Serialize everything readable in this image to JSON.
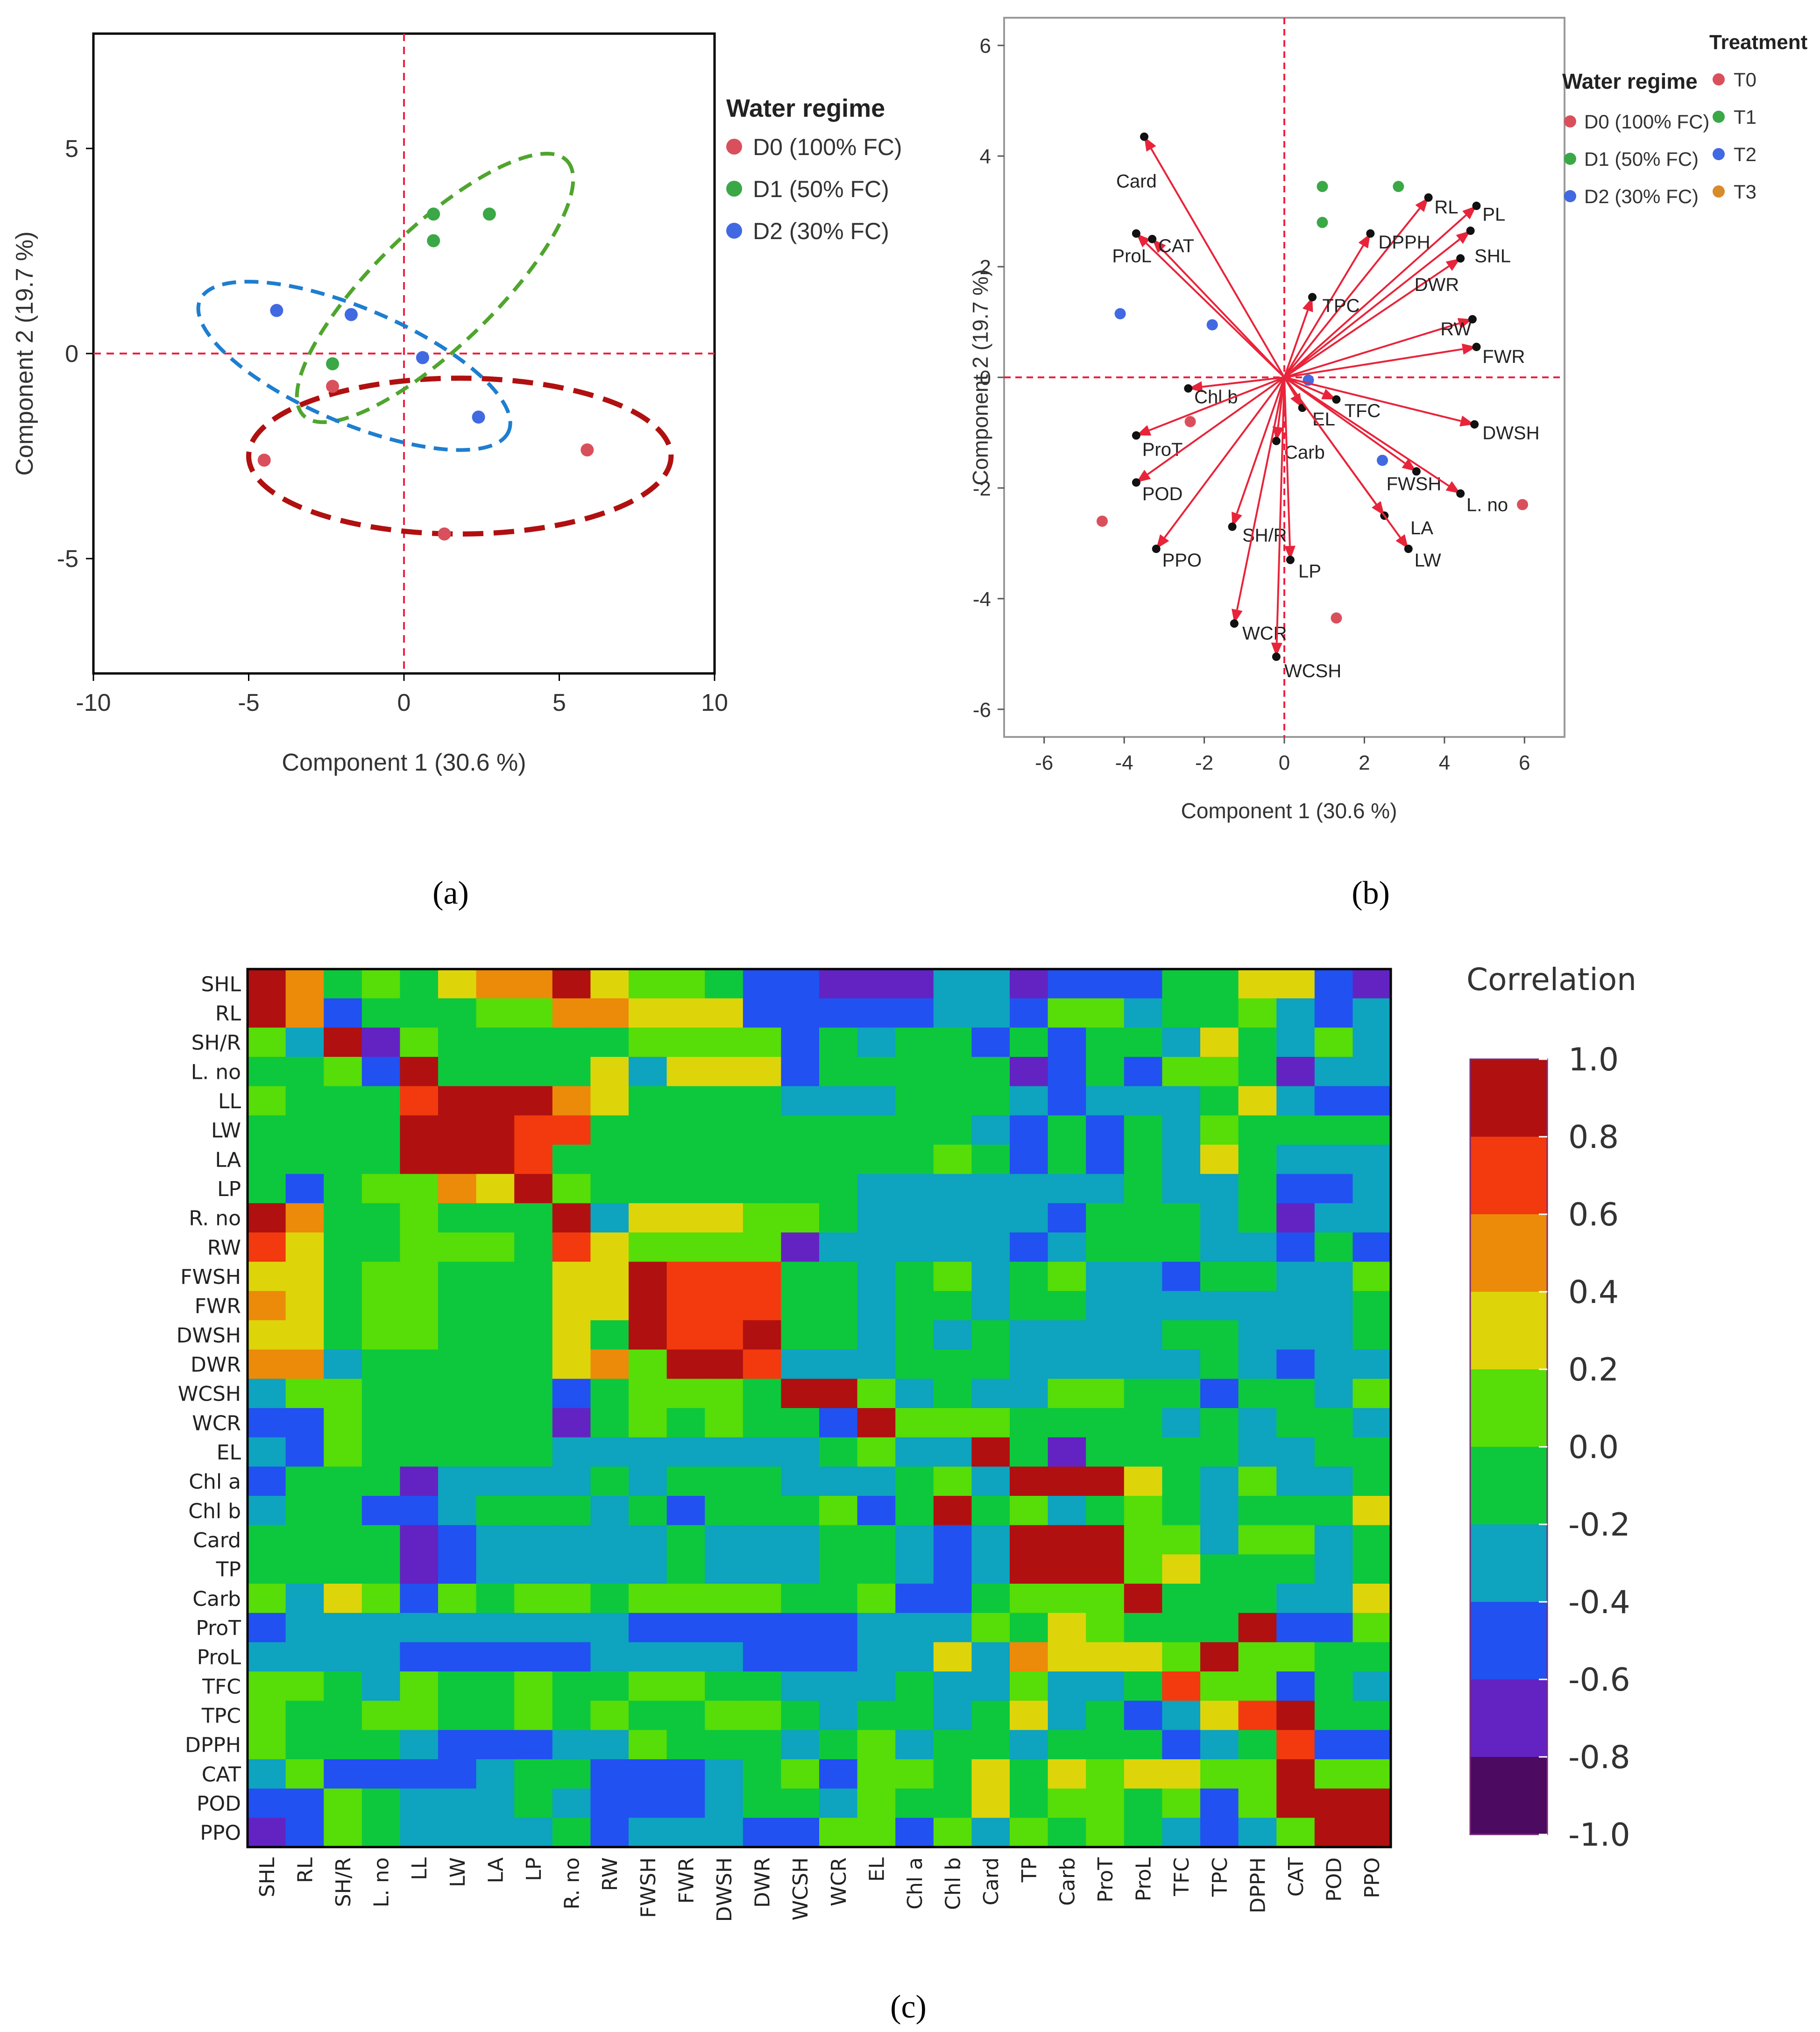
{
  "colors": {
    "D0": "#d9505c",
    "D1": "#3aa846",
    "D2": "#4169e1",
    "T3": "#d98a2b",
    "arrow": "#e8243a",
    "axisDash": "#f02040"
  },
  "chart_data": [
    {
      "id": "a",
      "type": "scatter",
      "panel_label": "(a)",
      "xlabel": "Component 1  (30.6 %)",
      "ylabel": "Component 2  (19.7 %)",
      "xlim": [
        -10,
        10
      ],
      "ylim": [
        -7.8,
        7.8
      ],
      "xticks": [
        "-10",
        "-5",
        "0",
        "5",
        "10"
      ],
      "yticks": [
        "5",
        "0",
        "-5"
      ],
      "legend_title": "Water regime",
      "series": [
        {
          "name": "D0 (100% FC)",
          "key": "D0",
          "points": [
            [
              -2.3,
              -0.8
            ],
            [
              -4.5,
              -2.6
            ],
            [
              5.9,
              -2.35
            ],
            [
              1.3,
              -4.4
            ]
          ]
        },
        {
          "name": "D1 (50% FC)",
          "key": "D1",
          "points": [
            [
              0.95,
              3.4
            ],
            [
              2.75,
              3.4
            ],
            [
              0.95,
              2.75
            ],
            [
              -2.3,
              -0.25
            ]
          ]
        },
        {
          "name": "D2 (30% FC)",
          "key": "D2",
          "points": [
            [
              -4.1,
              1.05
            ],
            [
              -1.7,
              0.95
            ],
            [
              0.6,
              -0.1
            ],
            [
              2.4,
              -1.55
            ]
          ]
        }
      ],
      "ellipses": [
        {
          "key": "D0",
          "center": [
            1.8,
            -2.5
          ],
          "rx": 6.8,
          "ry": 1.9,
          "angle": 0
        },
        {
          "key": "D1",
          "center": [
            1.0,
            1.6
          ],
          "rx": 5.9,
          "ry": 1.45,
          "angle": -44
        },
        {
          "key": "D2",
          "center": [
            -1.6,
            -0.3
          ],
          "rx": 5.4,
          "ry": 1.4,
          "angle": 23
        }
      ]
    },
    {
      "id": "b",
      "type": "scatter",
      "panel_label": "(b)",
      "xlabel": "Component 1  (30.6 %)",
      "ylabel": "Component 2  (19.7 %)",
      "xlim": [
        -7,
        7
      ],
      "ylim": [
        -6.5,
        6.5
      ],
      "xticks": [
        "-6",
        "-4",
        "-2",
        "0",
        "2",
        "4",
        "6"
      ],
      "yticks": [
        "6",
        "4",
        "2",
        "0",
        "-2",
        "-4",
        "-6"
      ],
      "legend_title": "Water regime",
      "legend_items": [
        {
          "name": "D0 (100% FC)",
          "key": "D0"
        },
        {
          "name": "D1 (50% FC)",
          "key": "D1"
        },
        {
          "name": "D2 (30% FC)",
          "key": "D2"
        }
      ],
      "legend2_title": "Treatment",
      "legend2_items": [
        {
          "name": "T0",
          "key": "D0"
        },
        {
          "name": "T1",
          "key": "D1"
        },
        {
          "name": "T2",
          "key": "D2"
        },
        {
          "name": "T3",
          "key": "T3"
        }
      ],
      "vectors": [
        {
          "label": "Card",
          "x": -3.5,
          "y": 4.35,
          "lx": -4.2,
          "ly": 3.55
        },
        {
          "label": "ProL",
          "x": -3.7,
          "y": 2.6,
          "lx": -4.3,
          "ly": 2.2
        },
        {
          "label": "CAT",
          "x": -3.3,
          "y": 2.5,
          "lx": -3.15,
          "ly": 2.38
        },
        {
          "label": "RL",
          "x": 3.6,
          "y": 3.25,
          "lx": 3.75,
          "ly": 3.08
        },
        {
          "label": "PL",
          "x": 4.8,
          "y": 3.1,
          "lx": 4.95,
          "ly": 2.95
        },
        {
          "label": "DPPH",
          "x": 2.15,
          "y": 2.6,
          "lx": 2.35,
          "ly": 2.45
        },
        {
          "label": "SHL",
          "x": 4.65,
          "y": 2.65,
          "lx": 4.75,
          "ly": 2.2
        },
        {
          "label": "DWR",
          "x": 4.4,
          "y": 2.15,
          "lx": 3.25,
          "ly": 1.68
        },
        {
          "label": "TPC",
          "x": 0.7,
          "y": 1.45,
          "lx": 0.95,
          "ly": 1.3
        },
        {
          "label": "RW",
          "x": 4.7,
          "y": 1.05,
          "lx": 3.9,
          "ly": 0.88
        },
        {
          "label": "FWR",
          "x": 4.8,
          "y": 0.55,
          "lx": 4.95,
          "ly": 0.38
        },
        {
          "label": "Chl b",
          "x": -2.4,
          "y": -0.2,
          "lx": -2.25,
          "ly": -0.35
        },
        {
          "label": "EL",
          "x": 0.45,
          "y": -0.55,
          "lx": 0.7,
          "ly": -0.75
        },
        {
          "label": "TFC",
          "x": 1.3,
          "y": -0.4,
          "lx": 1.5,
          "ly": -0.6
        },
        {
          "label": "DWSH",
          "x": 4.75,
          "y": -0.85,
          "lx": 4.95,
          "ly": -1.0
        },
        {
          "label": "ProT",
          "x": -3.7,
          "y": -1.05,
          "lx": -3.55,
          "ly": -1.3
        },
        {
          "label": "Carb",
          "x": -0.2,
          "y": -1.15,
          "lx": 0.0,
          "ly": -1.35
        },
        {
          "label": "POD",
          "x": -3.7,
          "y": -1.9,
          "lx": -3.55,
          "ly": -2.1
        },
        {
          "label": "FWSH",
          "x": 3.3,
          "y": -1.7,
          "lx": 2.55,
          "ly": -1.92
        },
        {
          "label": "L. no",
          "x": 4.4,
          "y": -2.1,
          "lx": 4.55,
          "ly": -2.3
        },
        {
          "label": "LA",
          "x": 2.5,
          "y": -2.5,
          "lx": 3.15,
          "ly": -2.72
        },
        {
          "label": "LW",
          "x": 3.1,
          "y": -3.1,
          "lx": 3.25,
          "ly": -3.3
        },
        {
          "label": "SH/R",
          "x": -1.3,
          "y": -2.7,
          "lx": -1.05,
          "ly": -2.85
        },
        {
          "label": "PPO",
          "x": -3.2,
          "y": -3.1,
          "lx": -3.05,
          "ly": -3.3
        },
        {
          "label": "LP",
          "x": 0.15,
          "y": -3.3,
          "lx": 0.35,
          "ly": -3.5
        },
        {
          "label": "WCR",
          "x": -1.25,
          "y": -4.45,
          "lx": -1.05,
          "ly": -4.62
        },
        {
          "label": "WCSH",
          "x": -0.2,
          "y": -5.05,
          "lx": 0.0,
          "ly": -5.3
        }
      ],
      "points": [
        {
          "key": "D0",
          "x": -4.55,
          "y": -2.6
        },
        {
          "key": "D0",
          "x": -2.35,
          "y": -0.8
        },
        {
          "key": "D0",
          "x": 1.3,
          "y": -4.35
        },
        {
          "key": "D0",
          "x": 5.95,
          "y": -2.3
        },
        {
          "key": "D1",
          "x": 0.95,
          "y": 3.45
        },
        {
          "key": "D1",
          "x": 2.85,
          "y": 3.45
        },
        {
          "key": "D1",
          "x": 0.95,
          "y": 2.8
        },
        {
          "key": "D2",
          "x": -4.1,
          "y": 1.15
        },
        {
          "key": "D2",
          "x": -1.8,
          "y": 0.95
        },
        {
          "key": "D2",
          "x": 0.6,
          "y": -0.05
        },
        {
          "key": "D2",
          "x": 2.45,
          "y": -1.5
        }
      ]
    },
    {
      "id": "c",
      "type": "heatmap",
      "panel_label": "(c)",
      "labels": [
        "SHL",
        "RL",
        "SH/R",
        "L. no",
        "LL",
        "LW",
        "LA",
        "LP",
        "R. no",
        "RW",
        "FWSH",
        "FWR",
        "DWSH",
        "DWR",
        "WCSH",
        "WCR",
        "EL",
        "Chl a",
        "Chl b",
        "Card",
        "TP",
        "Carb",
        "ProT",
        "ProL",
        "TFC",
        "TPC",
        "DPPH",
        "CAT",
        "POD",
        "PPO"
      ],
      "colorbar_title": "Correlation",
      "colorbar_ticks": [
        "1.0",
        "0.8",
        "0.6",
        "0.4",
        "0.2",
        "0.0",
        "-0.2",
        "-0.4",
        "-0.6",
        "-0.8",
        "-1.0"
      ],
      "colorbar_colors": [
        "#b01010",
        "#f23a0e",
        "#ec8a0a",
        "#ddd50a",
        "#57dd07",
        "#0dc83d",
        "#0ea3be",
        "#2151f0",
        "#6323c3",
        "#4c0a60"
      ],
      "rows": [
        "9745467796554221113312224466211",
        "97244455776662222233255344532",
        "539154444455552434424244364353",
        "4452944446366624444412425541333",
        "5444899976444433344432333463222",
        "444499988444444444432424354444",
        "444499984444444444542424364333",
        "42455769544444443333333433422333",
        "9744544493666554333332444341333",
        "8644555486555513333323444332422",
        "6645544466988844345345332443354",
        "7645544466988844344344333333344",
        "6645544464988944343433334433344",
        "7734444467599833344433333432334",
        "3554444424555499534335544244354",
        "2254444414545442955544443434435",
        "3254444433333334533941444433443",
        "24441333343444333453999643533454",
        "34422344434244452494534543444655",
        "44441233333433344323999553553465",
        "44441233333433344323999564443465",
        "53652545545555445224555944433653",
        "2333333333222222333546544492255",
        "333322222333322233637666595544",
        "5543544544554433343353348552434",
        "5445544545445543443463423689444",
        "5444322233544434534434442348221",
        "3522223442223452554646566559555",
        "2254333432223443544645545259999",
        "125433334233322552535454323599"
      ]
    }
  ]
}
